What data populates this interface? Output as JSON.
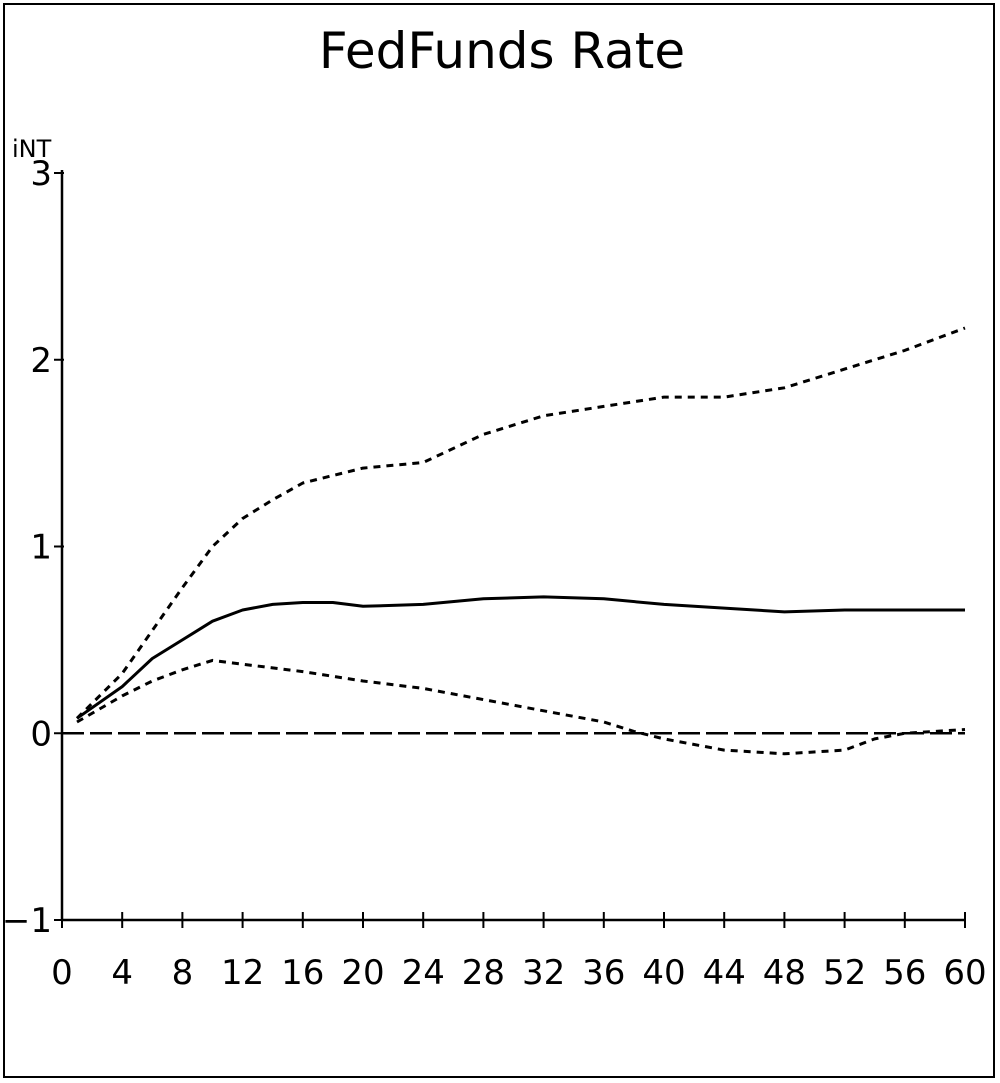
{
  "chart_data": {
    "type": "line",
    "title": "FedFunds Rate",
    "ylabel": "iNT",
    "xlabel": "",
    "xlim": [
      0,
      60
    ],
    "ylim": [
      -1,
      3
    ],
    "x_ticks": [
      0,
      4,
      8,
      12,
      16,
      20,
      24,
      28,
      32,
      36,
      40,
      44,
      48,
      52,
      56,
      60
    ],
    "y_ticks": [
      -1,
      0,
      1,
      2,
      3
    ],
    "grid": false,
    "zero_line": true,
    "series": [
      {
        "style": "solid",
        "x": [
          1,
          4,
          6,
          8,
          10,
          12,
          14,
          16,
          18,
          20,
          24,
          28,
          32,
          36,
          40,
          44,
          48,
          52,
          56,
          60
        ],
        "y": [
          0.08,
          0.25,
          0.4,
          0.5,
          0.6,
          0.66,
          0.69,
          0.7,
          0.7,
          0.68,
          0.69,
          0.72,
          0.73,
          0.72,
          0.69,
          0.67,
          0.65,
          0.66,
          0.66,
          0.66
        ]
      },
      {
        "style": "dashed",
        "x": [
          1,
          4,
          6,
          8,
          10,
          12,
          14,
          16,
          18,
          20,
          24,
          28,
          32,
          36,
          40,
          44,
          48,
          52,
          56,
          60
        ],
        "y": [
          0.08,
          0.32,
          0.55,
          0.78,
          1.0,
          1.15,
          1.25,
          1.34,
          1.38,
          1.42,
          1.45,
          1.6,
          1.7,
          1.75,
          1.8,
          1.8,
          1.85,
          1.95,
          2.05,
          2.17
        ]
      },
      {
        "style": "dashed",
        "x": [
          1,
          4,
          6,
          8,
          10,
          12,
          16,
          20,
          24,
          28,
          32,
          36,
          38,
          40,
          44,
          48,
          52,
          54,
          56,
          60
        ],
        "y": [
          0.06,
          0.2,
          0.28,
          0.34,
          0.39,
          0.37,
          0.33,
          0.28,
          0.24,
          0.18,
          0.12,
          0.06,
          0.01,
          -0.03,
          -0.09,
          -0.11,
          -0.09,
          -0.03,
          0.0,
          0.02
        ]
      }
    ]
  }
}
